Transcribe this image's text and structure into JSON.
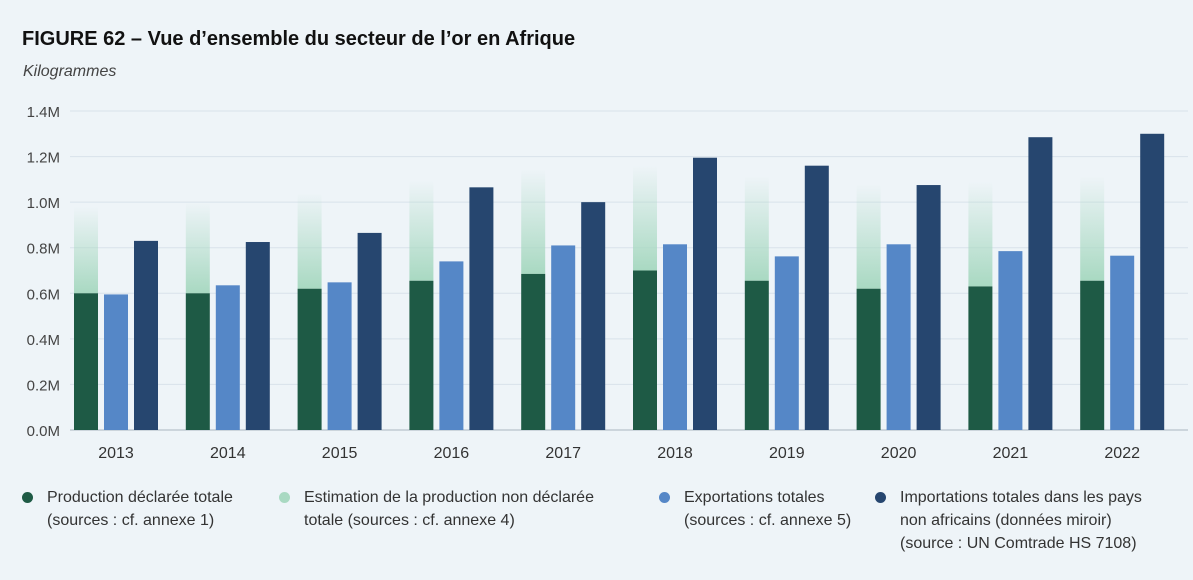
{
  "header": {
    "title": "FIGURE 62 – Vue d’ensemble du secteur de l’or en Afrique",
    "subtitle": "Kilogrammes"
  },
  "colors": {
    "production": "#1e5a45",
    "estimation": "#a9d9c2",
    "exportations": "#5587c7",
    "importations": "#26466f",
    "grid": "#d8e2ea",
    "axis_text": "#444444"
  },
  "chart_data": {
    "type": "bar",
    "categories": [
      "2013",
      "2014",
      "2015",
      "2016",
      "2017",
      "2018",
      "2019",
      "2020",
      "2021",
      "2022"
    ],
    "ylim": [
      0,
      1400000
    ],
    "yticks": [
      0,
      200000,
      400000,
      600000,
      800000,
      1000000,
      1200000,
      1400000
    ],
    "ytick_labels": [
      "0.0M",
      "0.2M",
      "0.4M",
      "0.6M",
      "0.8M",
      "1.0M",
      "1.2M",
      "1.4M"
    ],
    "grid": true,
    "legend_position": "bottom",
    "series": [
      {
        "key": "production",
        "name": "Production déclarée totale\n(sources : cf. annexe 1)",
        "values": [
          600000,
          600000,
          620000,
          655000,
          685000,
          700000,
          655000,
          620000,
          630000,
          655000
        ]
      },
      {
        "key": "estimation",
        "name": "Estimation de la production non déclarée\ntotale (sources : cf. annexe 4)",
        "stacked_on": "production",
        "values": [
          380000,
          400000,
          420000,
          440000,
          460000,
          460000,
          460000,
          460000,
          460000,
          460000
        ]
      },
      {
        "key": "exportations",
        "name": "Exportations totales\n(sources : cf. annexe 5)",
        "values": [
          595000,
          635000,
          648000,
          740000,
          810000,
          815000,
          762000,
          815000,
          785000,
          765000
        ]
      },
      {
        "key": "importations",
        "name": "Importations totales dans les pays\nnon africains (données miroir)\n(source : UN Comtrade HS 7108)",
        "values": [
          830000,
          825000,
          865000,
          1065000,
          1000000,
          1195000,
          1160000,
          1075000,
          1285000,
          1300000
        ]
      }
    ]
  }
}
